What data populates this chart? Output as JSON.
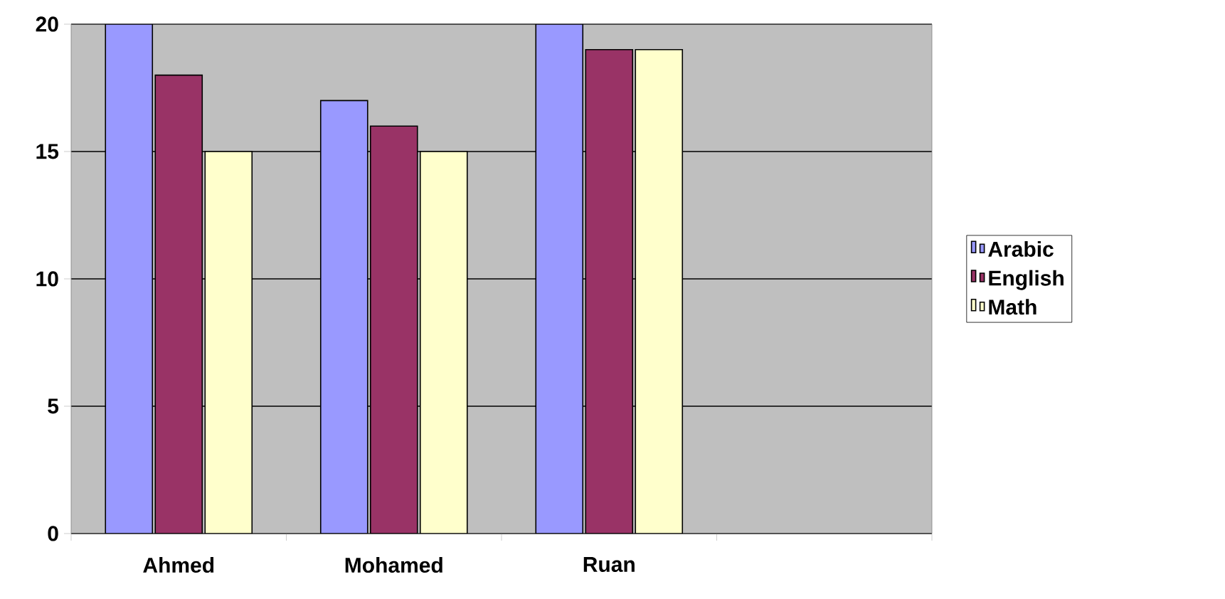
{
  "chart_data": {
    "type": "bar",
    "categories": [
      "Ahmed",
      "Mohamed",
      "Ruan",
      null
    ],
    "series": [
      {
        "name": "Arabic",
        "color": "#9999ff",
        "values": [
          20,
          17,
          20,
          null
        ]
      },
      {
        "name": "English",
        "color": "#993366",
        "values": [
          18,
          16,
          19,
          null
        ]
      },
      {
        "name": "Math",
        "color": "#ffffcc",
        "values": [
          15,
          15,
          19,
          null
        ]
      }
    ],
    "ylim": [
      0,
      20
    ],
    "yticks": [
      0,
      5,
      10,
      15,
      20
    ],
    "grid": "y",
    "legend": "right"
  }
}
